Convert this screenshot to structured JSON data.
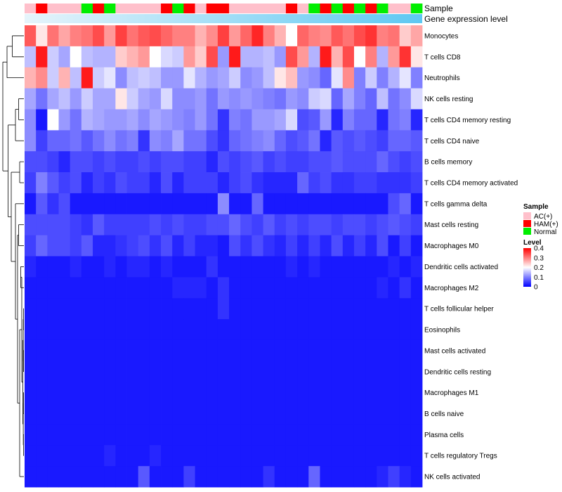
{
  "chart_data": {
    "type": "heatmap",
    "title": "",
    "annotation_labels": {
      "sample": "Sample",
      "expression": "Gene expression level"
    },
    "sample_groups": [
      "AC(+)",
      "HAM(+)",
      "Normal"
    ],
    "sample_colors": {
      "AC(+)": "#ffc0cb",
      "HAM(+)": "#ff0000",
      "Normal": "#00ee00"
    },
    "sample_track": [
      "AC(+)",
      "HAM(+)",
      "AC(+)",
      "AC(+)",
      "AC(+)",
      "Normal",
      "HAM(+)",
      "Normal",
      "AC(+)",
      "AC(+)",
      "AC(+)",
      "AC(+)",
      "HAM(+)",
      "Normal",
      "HAM(+)",
      "AC(+)",
      "HAM(+)",
      "HAM(+)",
      "AC(+)",
      "AC(+)",
      "AC(+)",
      "AC(+)",
      "AC(+)",
      "HAM(+)",
      "AC(+)",
      "Normal",
      "HAM(+)",
      "Normal",
      "HAM(+)",
      "Normal",
      "HAM(+)",
      "Normal",
      "AC(+)",
      "AC(+)",
      "Normal"
    ],
    "expression_track_colors": [
      "#e6f4fb",
      "#5ec8f2"
    ],
    "rows": [
      "Monocytes",
      "T cells CD8",
      "Neutrophils",
      "NK cells resting",
      "T cells CD4 memory resting",
      "T cells CD4 naive",
      "B cells memory",
      "T cells CD4 memory activated",
      "T cells gamma delta",
      "Mast cells resting",
      "Macrophages M0",
      "Dendritic cells activated",
      "Macrophages M2",
      "T cells follicular helper",
      "Eosinophils",
      "Mast cells activated",
      "Dendritic cells resting",
      "Macrophages M1",
      "B cells naive",
      "Plasma cells",
      "T cells regulatory  Tregs",
      "NK cells activated"
    ],
    "values": [
      [
        0.33,
        0.22,
        0.31,
        0.27,
        0.3,
        0.31,
        0.34,
        0.28,
        0.35,
        0.31,
        0.33,
        0.34,
        0.32,
        0.3,
        0.3,
        0.26,
        0.29,
        0.35,
        0.28,
        0.32,
        0.37,
        0.3,
        0.26,
        0.2,
        0.32,
        0.3,
        0.29,
        0.33,
        0.31,
        0.34,
        0.36,
        0.3,
        0.31,
        0.24,
        0.27
      ],
      [
        0.15,
        0.38,
        0.16,
        0.13,
        0.2,
        0.15,
        0.14,
        0.14,
        0.24,
        0.26,
        0.28,
        0.2,
        0.17,
        0.16,
        0.28,
        0.24,
        0.34,
        0.12,
        0.38,
        0.14,
        0.14,
        0.15,
        0.12,
        0.34,
        0.28,
        0.14,
        0.38,
        0.26,
        0.34,
        0.2,
        0.3,
        0.14,
        0.28,
        0.36,
        0.22
      ],
      [
        0.26,
        0.29,
        0.16,
        0.26,
        0.15,
        0.38,
        0.16,
        0.18,
        0.11,
        0.15,
        0.16,
        0.15,
        0.12,
        0.12,
        0.18,
        0.14,
        0.12,
        0.13,
        0.16,
        0.11,
        0.12,
        0.15,
        0.22,
        0.25,
        0.12,
        0.11,
        0.08,
        0.18,
        0.29,
        0.1,
        0.16,
        0.1,
        0.14,
        0.18,
        0.1
      ],
      [
        0.13,
        0.09,
        0.13,
        0.15,
        0.12,
        0.16,
        0.13,
        0.13,
        0.22,
        0.16,
        0.13,
        0.12,
        0.17,
        0.11,
        0.11,
        0.12,
        0.09,
        0.12,
        0.11,
        0.12,
        0.11,
        0.1,
        0.09,
        0.12,
        0.11,
        0.16,
        0.17,
        0.08,
        0.13,
        0.1,
        0.08,
        0.15,
        0.09,
        0.11,
        0.17
      ],
      [
        0.11,
        0.02,
        0.2,
        0.12,
        0.09,
        0.14,
        0.13,
        0.12,
        0.12,
        0.13,
        0.11,
        0.13,
        0.12,
        0.11,
        0.1,
        0.12,
        0.09,
        0.04,
        0.1,
        0.09,
        0.12,
        0.12,
        0.13,
        0.17,
        0.06,
        0.07,
        0.12,
        0.03,
        0.1,
        0.08,
        0.08,
        0.03,
        0.09,
        0.1,
        0.03
      ],
      [
        0.11,
        0.05,
        0.08,
        0.08,
        0.09,
        0.07,
        0.09,
        0.11,
        0.09,
        0.1,
        0.04,
        0.11,
        0.1,
        0.13,
        0.09,
        0.09,
        0.06,
        0.04,
        0.08,
        0.09,
        0.1,
        0.11,
        0.08,
        0.06,
        0.07,
        0.09,
        0.03,
        0.07,
        0.06,
        0.07,
        0.06,
        0.05,
        0.08,
        0.08,
        0.07
      ],
      [
        0.06,
        0.06,
        0.05,
        0.03,
        0.06,
        0.06,
        0.05,
        0.06,
        0.05,
        0.05,
        0.06,
        0.05,
        0.06,
        0.06,
        0.05,
        0.05,
        0.03,
        0.06,
        0.05,
        0.06,
        0.07,
        0.05,
        0.06,
        0.05,
        0.05,
        0.06,
        0.06,
        0.07,
        0.06,
        0.06,
        0.06,
        0.08,
        0.06,
        0.05,
        0.06
      ],
      [
        0.05,
        0.1,
        0.07,
        0.05,
        0.06,
        0.03,
        0.05,
        0.04,
        0.06,
        0.05,
        0.05,
        0.03,
        0.06,
        0.03,
        0.05,
        0.05,
        0.05,
        0.03,
        0.05,
        0.06,
        0.04,
        0.03,
        0.03,
        0.03,
        0.08,
        0.05,
        0.06,
        0.04,
        0.04,
        0.05,
        0.05,
        0.04,
        0.04,
        0.04,
        0.05
      ],
      [
        0.02,
        0.07,
        0.04,
        0.06,
        0.02,
        0.02,
        0.02,
        0.02,
        0.02,
        0.02,
        0.02,
        0.02,
        0.02,
        0.02,
        0.02,
        0.02,
        0.02,
        0.11,
        0.02,
        0.02,
        0.08,
        0.02,
        0.02,
        0.02,
        0.02,
        0.02,
        0.02,
        0.02,
        0.02,
        0.02,
        0.02,
        0.02,
        0.06,
        0.08,
        0.02
      ],
      [
        0.06,
        0.06,
        0.06,
        0.06,
        0.05,
        0.04,
        0.07,
        0.05,
        0.05,
        0.05,
        0.05,
        0.06,
        0.05,
        0.06,
        0.05,
        0.05,
        0.06,
        0.06,
        0.08,
        0.06,
        0.05,
        0.07,
        0.05,
        0.06,
        0.05,
        0.06,
        0.06,
        0.05,
        0.06,
        0.06,
        0.05,
        0.06,
        0.07,
        0.06,
        0.05
      ],
      [
        0.05,
        0.08,
        0.06,
        0.06,
        0.05,
        0.07,
        0.03,
        0.03,
        0.04,
        0.05,
        0.06,
        0.04,
        0.06,
        0.03,
        0.05,
        0.03,
        0.03,
        0.02,
        0.06,
        0.04,
        0.06,
        0.04,
        0.03,
        0.05,
        0.03,
        0.05,
        0.03,
        0.06,
        0.03,
        0.05,
        0.03,
        0.06,
        0.02,
        0.05,
        0.02
      ],
      [
        0.03,
        0.02,
        0.02,
        0.02,
        0.03,
        0.02,
        0.02,
        0.03,
        0.02,
        0.03,
        0.03,
        0.02,
        0.03,
        0.02,
        0.02,
        0.02,
        0.04,
        0.02,
        0.02,
        0.02,
        0.02,
        0.02,
        0.02,
        0.03,
        0.02,
        0.03,
        0.02,
        0.02,
        0.02,
        0.02,
        0.02,
        0.02,
        0.03,
        0.02,
        0.03
      ],
      [
        0.02,
        0.02,
        0.02,
        0.02,
        0.02,
        0.02,
        0.02,
        0.02,
        0.02,
        0.02,
        0.02,
        0.02,
        0.02,
        0.03,
        0.03,
        0.03,
        0.02,
        0.04,
        0.02,
        0.02,
        0.02,
        0.02,
        0.02,
        0.02,
        0.02,
        0.02,
        0.02,
        0.02,
        0.02,
        0.02,
        0.02,
        0.03,
        0.02,
        0.04,
        0.02
      ],
      [
        0.02,
        0.02,
        0.02,
        0.02,
        0.02,
        0.02,
        0.02,
        0.02,
        0.02,
        0.02,
        0.02,
        0.02,
        0.02,
        0.02,
        0.02,
        0.02,
        0.02,
        0.04,
        0.02,
        0.02,
        0.02,
        0.02,
        0.02,
        0.02,
        0.02,
        0.02,
        0.02,
        0.02,
        0.02,
        0.02,
        0.02,
        0.02,
        0.02,
        0.02,
        0.02
      ],
      [
        0.02,
        0.02,
        0.02,
        0.02,
        0.02,
        0.02,
        0.02,
        0.02,
        0.02,
        0.02,
        0.02,
        0.02,
        0.02,
        0.02,
        0.02,
        0.02,
        0.02,
        0.02,
        0.02,
        0.02,
        0.02,
        0.02,
        0.02,
        0.02,
        0.02,
        0.02,
        0.02,
        0.02,
        0.02,
        0.02,
        0.02,
        0.02,
        0.02,
        0.02,
        0.02
      ],
      [
        0.02,
        0.02,
        0.02,
        0.02,
        0.02,
        0.02,
        0.02,
        0.02,
        0.02,
        0.02,
        0.02,
        0.02,
        0.02,
        0.02,
        0.02,
        0.02,
        0.02,
        0.02,
        0.02,
        0.02,
        0.02,
        0.02,
        0.02,
        0.02,
        0.02,
        0.02,
        0.02,
        0.02,
        0.02,
        0.02,
        0.02,
        0.02,
        0.02,
        0.02,
        0.02
      ],
      [
        0.02,
        0.02,
        0.02,
        0.02,
        0.02,
        0.02,
        0.02,
        0.02,
        0.02,
        0.02,
        0.02,
        0.02,
        0.02,
        0.02,
        0.02,
        0.02,
        0.02,
        0.02,
        0.02,
        0.02,
        0.02,
        0.02,
        0.02,
        0.02,
        0.02,
        0.02,
        0.02,
        0.02,
        0.02,
        0.02,
        0.02,
        0.02,
        0.02,
        0.02,
        0.02
      ],
      [
        0.02,
        0.02,
        0.02,
        0.02,
        0.02,
        0.02,
        0.02,
        0.02,
        0.02,
        0.02,
        0.02,
        0.02,
        0.02,
        0.02,
        0.02,
        0.02,
        0.02,
        0.02,
        0.02,
        0.02,
        0.02,
        0.02,
        0.02,
        0.02,
        0.02,
        0.02,
        0.02,
        0.02,
        0.02,
        0.02,
        0.02,
        0.02,
        0.02,
        0.02,
        0.02
      ],
      [
        0.02,
        0.02,
        0.02,
        0.02,
        0.02,
        0.02,
        0.02,
        0.02,
        0.02,
        0.02,
        0.02,
        0.02,
        0.02,
        0.02,
        0.02,
        0.02,
        0.02,
        0.02,
        0.02,
        0.02,
        0.02,
        0.02,
        0.02,
        0.02,
        0.02,
        0.02,
        0.02,
        0.02,
        0.02,
        0.02,
        0.02,
        0.02,
        0.02,
        0.02,
        0.02
      ],
      [
        0.02,
        0.02,
        0.02,
        0.02,
        0.02,
        0.02,
        0.02,
        0.02,
        0.02,
        0.02,
        0.02,
        0.02,
        0.02,
        0.02,
        0.02,
        0.02,
        0.02,
        0.02,
        0.02,
        0.02,
        0.02,
        0.02,
        0.02,
        0.02,
        0.02,
        0.02,
        0.02,
        0.02,
        0.02,
        0.02,
        0.02,
        0.02,
        0.02,
        0.02,
        0.02
      ],
      [
        0.02,
        0.02,
        0.02,
        0.02,
        0.02,
        0.02,
        0.02,
        0.03,
        0.02,
        0.02,
        0.02,
        0.03,
        0.02,
        0.02,
        0.02,
        0.02,
        0.02,
        0.02,
        0.02,
        0.02,
        0.02,
        0.02,
        0.02,
        0.02,
        0.02,
        0.02,
        0.02,
        0.02,
        0.02,
        0.02,
        0.02,
        0.02,
        0.02,
        0.02,
        0.02
      ],
      [
        0.02,
        0.02,
        0.02,
        0.02,
        0.02,
        0.02,
        0.02,
        0.02,
        0.02,
        0.02,
        0.07,
        0.02,
        0.02,
        0.02,
        0.05,
        0.02,
        0.02,
        0.02,
        0.02,
        0.02,
        0.02,
        0.04,
        0.02,
        0.02,
        0.02,
        0.08,
        0.02,
        0.02,
        0.02,
        0.02,
        0.02,
        0.03,
        0.05,
        0.03,
        0.02
      ]
    ],
    "color_scale": {
      "min": 0,
      "mid": 0.2,
      "max": 0.4,
      "low": "#0000ff",
      "mid_color": "#ffffff",
      "high": "#ff0000"
    },
    "legend": {
      "sample_title": "Sample",
      "level_title": "Level",
      "level_ticks": [
        "0.4",
        "0.3",
        "0.2",
        "0.1",
        "0"
      ],
      "level_tick_values": [
        0.4,
        0.3,
        0.2,
        0.1,
        0
      ],
      "placement": "right"
    },
    "dendrogram": {
      "clusters": [
        {
          "members": [
            0,
            1
          ]
        },
        {
          "members": [
            3,
            4
          ]
        },
        {
          "members": [
            3,
            4,
            5
          ]
        },
        {
          "members": [
            6,
            7
          ]
        },
        {
          "members": [
            9,
            10
          ]
        },
        {
          "members": [
            11,
            12
          ]
        },
        {
          "members": [
            13,
            14
          ]
        },
        {
          "members": [
            15,
            16
          ]
        },
        {
          "members": [
            13,
            14,
            15,
            16
          ]
        },
        {
          "members": [
            17,
            18
          ]
        },
        {
          "members": [
            19,
            20
          ]
        },
        {
          "members": [
            17,
            18,
            19,
            20
          ]
        },
        {
          "members": [
            13,
            14,
            15,
            16,
            17,
            18,
            19,
            20
          ]
        },
        {
          "members": [
            11,
            12,
            13,
            14,
            15,
            16,
            17,
            18,
            19,
            20
          ]
        },
        {
          "members": [
            11,
            12,
            13,
            14,
            15,
            16,
            17,
            18,
            19,
            20,
            21
          ]
        },
        {
          "members": [
            9,
            10,
            11,
            12,
            13,
            14,
            15,
            16,
            17,
            18,
            19,
            20,
            21
          ]
        },
        {
          "members": [
            8,
            9,
            10,
            11,
            12,
            13,
            14,
            15,
            16,
            17,
            18,
            19,
            20,
            21
          ]
        },
        {
          "members": [
            6,
            7,
            8,
            9,
            10,
            11,
            12,
            13,
            14,
            15,
            16,
            17,
            18,
            19,
            20,
            21
          ]
        },
        {
          "members": [
            3,
            4,
            5,
            6,
            7,
            8,
            9,
            10,
            11,
            12,
            13,
            14,
            15,
            16,
            17,
            18,
            19,
            20,
            21
          ]
        },
        {
          "members": [
            0,
            1,
            2
          ]
        },
        {
          "members": [
            0,
            1,
            2,
            3,
            4,
            5,
            6,
            7,
            8,
            9,
            10,
            11,
            12,
            13,
            14,
            15,
            16,
            17,
            18,
            19,
            20,
            21
          ]
        }
      ],
      "heights": [
        0.55,
        0.25,
        0.4,
        0.2,
        0.25,
        0.15,
        0.02,
        0.02,
        0.03,
        0.02,
        0.02,
        0.03,
        0.05,
        0.1,
        0.2,
        0.3,
        0.4,
        0.6,
        0.75,
        0.8,
        1.0
      ]
    }
  }
}
